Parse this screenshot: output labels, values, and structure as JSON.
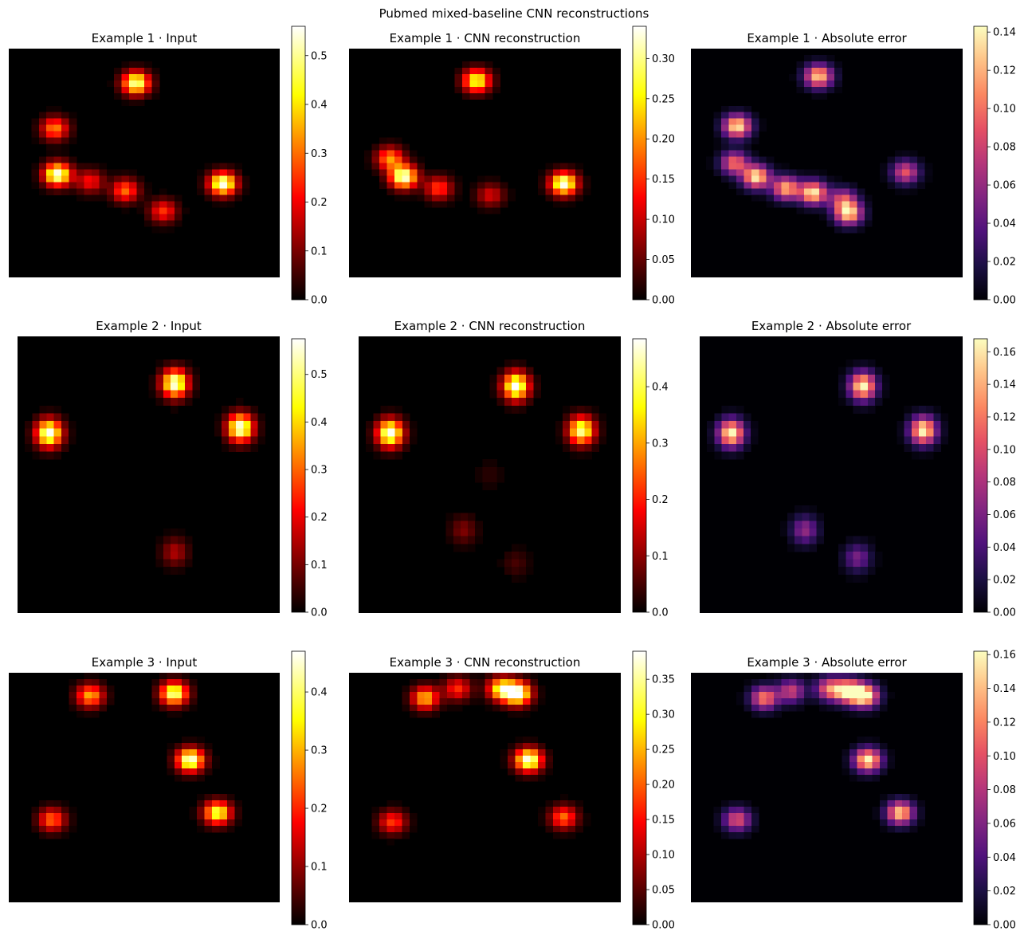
{
  "figure": {
    "title": "Pubmed mixed-baseline CNN reconstructions"
  },
  "colormaps": {
    "hot": [
      "#000000",
      "#550000",
      "#aa0000",
      "#ff0000",
      "#ff5500",
      "#ffaa00",
      "#ffff00",
      "#ffff80",
      "#ffffff"
    ],
    "magma": [
      "#000004",
      "#1c1044",
      "#4f127b",
      "#812581",
      "#b5367a",
      "#e55064",
      "#fb8761",
      "#fec287",
      "#fcfdbf"
    ]
  },
  "chart_data": [
    {
      "type": "heatmap",
      "title": "Example 1 · Input",
      "colormap": "hot",
      "grid": false,
      "axes_visible": false,
      "colorbar": {
        "range": [
          0,
          0.56
        ],
        "ticks": [
          0.0,
          0.1,
          0.2,
          0.3,
          0.4,
          0.5
        ],
        "tick_labels": [
          "0.0",
          "0.1",
          "0.2",
          "0.3",
          "0.4",
          "0.5"
        ]
      },
      "blobs": [
        {
          "x": 0.47,
          "y": 0.15,
          "value": 0.52
        },
        {
          "x": 0.17,
          "y": 0.35,
          "value": 0.32
        },
        {
          "x": 0.18,
          "y": 0.55,
          "value": 0.56
        },
        {
          "x": 0.3,
          "y": 0.58,
          "value": 0.22
        },
        {
          "x": 0.43,
          "y": 0.62,
          "value": 0.3
        },
        {
          "x": 0.57,
          "y": 0.71,
          "value": 0.25
        },
        {
          "x": 0.79,
          "y": 0.59,
          "value": 0.56
        }
      ]
    },
    {
      "type": "heatmap",
      "title": "Example 1 · CNN reconstruction",
      "colormap": "hot",
      "grid": false,
      "axes_visible": false,
      "colorbar": {
        "range": [
          0,
          0.34
        ],
        "ticks": [
          0.0,
          0.05,
          0.1,
          0.15,
          0.2,
          0.25,
          0.3
        ],
        "tick_labels": [
          "0.00",
          "0.05",
          "0.10",
          "0.15",
          "0.20",
          "0.25",
          "0.30"
        ]
      },
      "blobs": [
        {
          "x": 0.47,
          "y": 0.14,
          "value": 0.28
        },
        {
          "x": 0.15,
          "y": 0.48,
          "value": 0.2
        },
        {
          "x": 0.2,
          "y": 0.56,
          "value": 0.34
        },
        {
          "x": 0.33,
          "y": 0.61,
          "value": 0.16
        },
        {
          "x": 0.52,
          "y": 0.64,
          "value": 0.11
        },
        {
          "x": 0.79,
          "y": 0.59,
          "value": 0.34
        }
      ]
    },
    {
      "type": "heatmap",
      "title": "Example 1 · Absolute error",
      "colormap": "magma",
      "grid": false,
      "axes_visible": false,
      "colorbar": {
        "range": [
          0,
          0.143
        ],
        "ticks": [
          0.0,
          0.02,
          0.04,
          0.06,
          0.08,
          0.1,
          0.12,
          0.14
        ],
        "tick_labels": [
          "0.00",
          "0.02",
          "0.04",
          "0.06",
          "0.08",
          "0.10",
          "0.12",
          "0.14"
        ]
      },
      "blobs": [
        {
          "x": 0.47,
          "y": 0.12,
          "value": 0.13
        },
        {
          "x": 0.17,
          "y": 0.34,
          "value": 0.14
        },
        {
          "x": 0.16,
          "y": 0.5,
          "value": 0.1
        },
        {
          "x": 0.24,
          "y": 0.56,
          "value": 0.14
        },
        {
          "x": 0.35,
          "y": 0.61,
          "value": 0.12
        },
        {
          "x": 0.45,
          "y": 0.63,
          "value": 0.14
        },
        {
          "x": 0.56,
          "y": 0.66,
          "value": 0.08
        },
        {
          "x": 0.58,
          "y": 0.72,
          "value": 0.13
        },
        {
          "x": 0.79,
          "y": 0.54,
          "value": 0.09
        }
      ]
    },
    {
      "type": "heatmap",
      "title": "Example 2 · Input",
      "colormap": "hot",
      "grid": false,
      "axes_visible": false,
      "colorbar": {
        "range": [
          0,
          0.575
        ],
        "ticks": [
          0.0,
          0.1,
          0.2,
          0.3,
          0.4,
          0.5
        ],
        "tick_labels": [
          "0.0",
          "0.1",
          "0.2",
          "0.3",
          "0.4",
          "0.5"
        ]
      },
      "blobs": [
        {
          "x": 0.6,
          "y": 0.17,
          "value": 0.575
        },
        {
          "x": 0.12,
          "y": 0.35,
          "value": 0.575
        },
        {
          "x": 0.85,
          "y": 0.33,
          "value": 0.575
        },
        {
          "x": 0.6,
          "y": 0.78,
          "value": 0.15
        }
      ]
    },
    {
      "type": "heatmap",
      "title": "Example 2 · CNN reconstruction",
      "colormap": "hot",
      "grid": false,
      "axes_visible": false,
      "colorbar": {
        "range": [
          0,
          0.485
        ],
        "ticks": [
          0.0,
          0.1,
          0.2,
          0.3,
          0.4
        ],
        "tick_labels": [
          "0.0",
          "0.1",
          "0.2",
          "0.3",
          "0.4"
        ]
      },
      "blobs": [
        {
          "x": 0.6,
          "y": 0.18,
          "value": 0.485
        },
        {
          "x": 0.12,
          "y": 0.35,
          "value": 0.485
        },
        {
          "x": 0.85,
          "y": 0.34,
          "value": 0.44
        },
        {
          "x": 0.4,
          "y": 0.7,
          "value": 0.09
        },
        {
          "x": 0.6,
          "y": 0.82,
          "value": 0.05
        },
        {
          "x": 0.5,
          "y": 0.5,
          "value": 0.03
        }
      ]
    },
    {
      "type": "heatmap",
      "title": "Example 2 · Absolute error",
      "colormap": "magma",
      "grid": false,
      "axes_visible": false,
      "colorbar": {
        "range": [
          0,
          0.168
        ],
        "ticks": [
          0.0,
          0.02,
          0.04,
          0.06,
          0.08,
          0.1,
          0.12,
          0.14,
          0.16
        ],
        "tick_labels": [
          "0.00",
          "0.02",
          "0.04",
          "0.06",
          "0.08",
          "0.10",
          "0.12",
          "0.14",
          "0.16"
        ]
      },
      "blobs": [
        {
          "x": 0.62,
          "y": 0.18,
          "value": 0.168
        },
        {
          "x": 0.12,
          "y": 0.35,
          "value": 0.168
        },
        {
          "x": 0.85,
          "y": 0.34,
          "value": 0.168
        },
        {
          "x": 0.4,
          "y": 0.7,
          "value": 0.07
        },
        {
          "x": 0.6,
          "y": 0.8,
          "value": 0.06
        }
      ]
    },
    {
      "type": "heatmap",
      "title": "Example 3 · Input",
      "colormap": "hot",
      "grid": false,
      "axes_visible": false,
      "colorbar": {
        "range": [
          0,
          0.47
        ],
        "ticks": [
          0.0,
          0.1,
          0.2,
          0.3,
          0.4
        ],
        "tick_labels": [
          "0.0",
          "0.1",
          "0.2",
          "0.3",
          "0.4"
        ]
      },
      "blobs": [
        {
          "x": 0.3,
          "y": 0.1,
          "value": 0.3
        },
        {
          "x": 0.61,
          "y": 0.09,
          "value": 0.44
        },
        {
          "x": 0.67,
          "y": 0.38,
          "value": 0.47
        },
        {
          "x": 0.77,
          "y": 0.61,
          "value": 0.4
        },
        {
          "x": 0.16,
          "y": 0.64,
          "value": 0.25
        }
      ]
    },
    {
      "type": "heatmap",
      "title": "Example 3 · CNN reconstruction",
      "colormap": "hot",
      "grid": false,
      "axes_visible": false,
      "colorbar": {
        "range": [
          0,
          0.39
        ],
        "ticks": [
          0.0,
          0.05,
          0.1,
          0.15,
          0.2,
          0.25,
          0.3,
          0.35
        ],
        "tick_labels": [
          "0.00",
          "0.05",
          "0.10",
          "0.15",
          "0.20",
          "0.25",
          "0.30",
          "0.35"
        ]
      },
      "blobs": [
        {
          "x": 0.28,
          "y": 0.11,
          "value": 0.26
        },
        {
          "x": 0.4,
          "y": 0.07,
          "value": 0.17
        },
        {
          "x": 0.56,
          "y": 0.07,
          "value": 0.3
        },
        {
          "x": 0.62,
          "y": 0.09,
          "value": 0.39
        },
        {
          "x": 0.66,
          "y": 0.38,
          "value": 0.39
        },
        {
          "x": 0.79,
          "y": 0.63,
          "value": 0.21
        },
        {
          "x": 0.16,
          "y": 0.65,
          "value": 0.18
        }
      ]
    },
    {
      "type": "heatmap",
      "title": "Example 3 · Absolute error",
      "colormap": "magma",
      "grid": false,
      "axes_visible": false,
      "colorbar": {
        "range": [
          0,
          0.162
        ],
        "ticks": [
          0.0,
          0.02,
          0.04,
          0.06,
          0.08,
          0.1,
          0.12,
          0.14,
          0.16
        ],
        "tick_labels": [
          "0.00",
          "0.02",
          "0.04",
          "0.06",
          "0.08",
          "0.10",
          "0.12",
          "0.14",
          "0.16"
        ]
      },
      "blobs": [
        {
          "x": 0.27,
          "y": 0.11,
          "value": 0.12
        },
        {
          "x": 0.37,
          "y": 0.08,
          "value": 0.09
        },
        {
          "x": 0.51,
          "y": 0.07,
          "value": 0.11
        },
        {
          "x": 0.58,
          "y": 0.08,
          "value": 0.162
        },
        {
          "x": 0.64,
          "y": 0.1,
          "value": 0.162
        },
        {
          "x": 0.65,
          "y": 0.38,
          "value": 0.162
        },
        {
          "x": 0.77,
          "y": 0.61,
          "value": 0.15
        },
        {
          "x": 0.17,
          "y": 0.64,
          "value": 0.1
        }
      ]
    }
  ]
}
